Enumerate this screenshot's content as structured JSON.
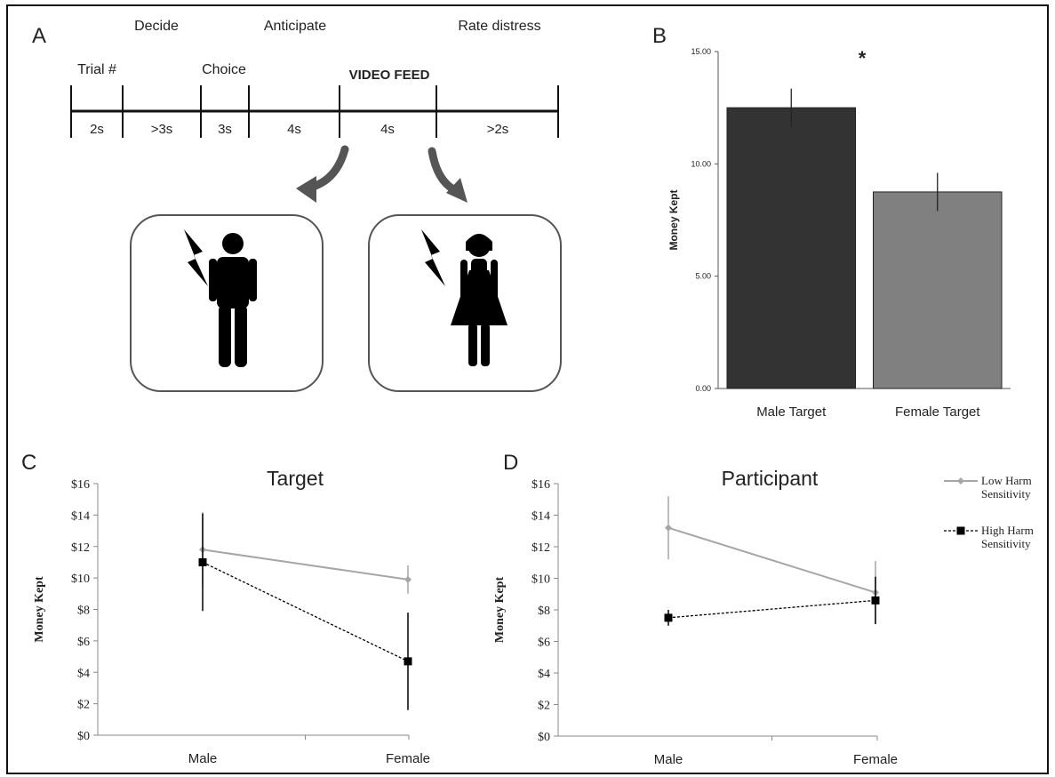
{
  "panel_letters": [
    "A",
    "B",
    "C",
    "D"
  ],
  "timeline": {
    "phases_top": [
      "Decide",
      "Anticipate",
      "Rate distress"
    ],
    "phases_mid": [
      "Trial #",
      "Choice"
    ],
    "video_label": "VIDEO FEED",
    "durations": [
      "2s",
      ">3s",
      "3s",
      "4s",
      "4s",
      ">2s"
    ]
  },
  "chart_data": [
    {
      "panel": "B",
      "type": "bar",
      "categories": [
        "Male Target",
        "Female Target"
      ],
      "values": [
        12.5,
        8.75
      ],
      "error": [
        0.85,
        0.85
      ],
      "ylabel": "Money Kept",
      "ylim": [
        0,
        15
      ],
      "yticks": [
        "0.00",
        "5.00",
        "10.00",
        "15.00"
      ],
      "colors": [
        "#333333",
        "#808080"
      ],
      "annotation": "*",
      "grid": false
    },
    {
      "panel": "C",
      "type": "line",
      "title": "Target",
      "categories": [
        "Male",
        "Female"
      ],
      "ylabel": "Money Kept",
      "ylim": [
        0,
        16
      ],
      "yticks": [
        "$0",
        "$2",
        "$4",
        "$6",
        "$8",
        "$10",
        "$12",
        "$14",
        "$16"
      ],
      "series": [
        {
          "values": [
            11.8,
            9.9
          ],
          "error": [
            2.4,
            0.9
          ],
          "color": "#a6a6a6",
          "marker": "diamond",
          "dash": false
        },
        {
          "values": [
            11.0,
            4.7
          ],
          "error": [
            3.1,
            3.1
          ],
          "color": "#000000",
          "marker": "square",
          "dash": true
        }
      ]
    },
    {
      "panel": "D",
      "type": "line",
      "title": "Participant",
      "categories": [
        "Male",
        "Female"
      ],
      "ylabel": "Money Kept",
      "ylim": [
        0,
        16
      ],
      "yticks": [
        "$0",
        "$2",
        "$4",
        "$6",
        "$8",
        "$10",
        "$12",
        "$14",
        "$16"
      ],
      "series": [
        {
          "name": "Low Harm Sensitivity",
          "values": [
            13.2,
            9.1
          ],
          "error": [
            2.0,
            2.0
          ],
          "color": "#a6a6a6",
          "marker": "diamond",
          "dash": false
        },
        {
          "name": "High Harm Sensitivity",
          "values": [
            7.5,
            8.6
          ],
          "error": [
            0.5,
            1.5
          ],
          "color": "#000000",
          "marker": "square",
          "dash": true
        }
      ],
      "legend_lines": [
        [
          "Low Harm",
          "Sensitivity"
        ],
        [
          "High Harm",
          "Sensitivity"
        ]
      ],
      "legend": "right"
    }
  ]
}
